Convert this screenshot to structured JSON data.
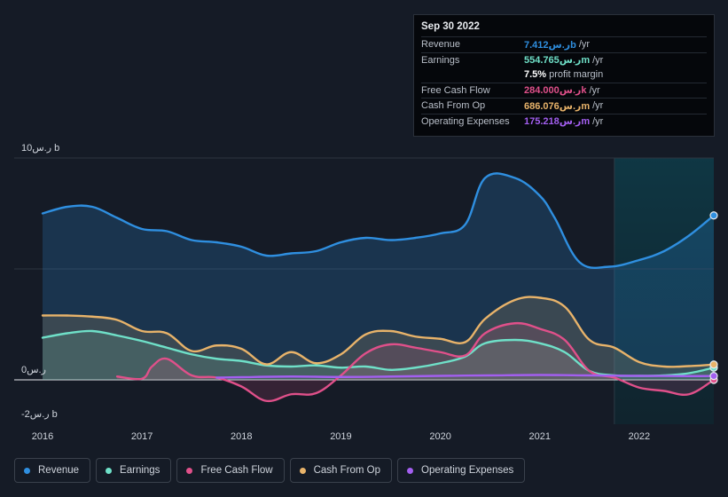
{
  "tooltip": {
    "date": "Sep 30 2022",
    "rows": [
      {
        "label": "Revenue",
        "value": "7.412ر.س",
        "value_suffix": "b",
        "unit": "/yr",
        "color": "#2f8fe0"
      },
      {
        "label": "Earnings",
        "value": "554.765ر.س",
        "value_suffix": "m",
        "unit": "/yr",
        "color": "#6fe0c8"
      },
      {
        "label": "",
        "value": "7.5%",
        "value_suffix": "",
        "unit": "profit margin",
        "color": "#ffffff"
      },
      {
        "label": "Free Cash Flow",
        "value": "284.000ر.س",
        "value_suffix": "k",
        "unit": "/yr",
        "color": "#e0508a"
      },
      {
        "label": "Cash From Op",
        "value": "686.076ر.س",
        "value_suffix": "m",
        "unit": "/yr",
        "color": "#e8b36a"
      },
      {
        "label": "Operating Expenses",
        "value": "175.218ر.س",
        "value_suffix": "m",
        "unit": "/yr",
        "color": "#a35ff0"
      }
    ]
  },
  "legend": [
    {
      "label": "Revenue",
      "color": "#2f8fe0"
    },
    {
      "label": "Earnings",
      "color": "#6fe0c8"
    },
    {
      "label": "Free Cash Flow",
      "color": "#e0508a"
    },
    {
      "label": "Cash From Op",
      "color": "#e8b36a"
    },
    {
      "label": "Operating Expenses",
      "color": "#a35ff0"
    }
  ],
  "chart_data": {
    "type": "area",
    "title": "",
    "unit": "ر.س",
    "y_tick_labels": [
      {
        "value": 10,
        "label": "10ر.س b"
      },
      {
        "value": 0,
        "label": "0ر.س"
      },
      {
        "value": -2,
        "label": "-2ر.س b"
      }
    ],
    "ylim": [
      -2,
      10
    ],
    "xlim": [
      2015.95,
      2022.75
    ],
    "x_ticks": [
      2016,
      2017,
      2018,
      2019,
      2020,
      2021,
      2022
    ],
    "forecast_start": 2021.75,
    "series": [
      {
        "name": "Revenue",
        "color": "#2f8fe0",
        "points": [
          [
            2016.0,
            7.5
          ],
          [
            2016.25,
            7.8
          ],
          [
            2016.5,
            7.8
          ],
          [
            2016.75,
            7.3
          ],
          [
            2017.0,
            6.8
          ],
          [
            2017.25,
            6.7
          ],
          [
            2017.5,
            6.3
          ],
          [
            2017.75,
            6.2
          ],
          [
            2018.0,
            6.0
          ],
          [
            2018.25,
            5.6
          ],
          [
            2018.5,
            5.7
          ],
          [
            2018.75,
            5.8
          ],
          [
            2019.0,
            6.2
          ],
          [
            2019.25,
            6.4
          ],
          [
            2019.5,
            6.3
          ],
          [
            2019.75,
            6.4
          ],
          [
            2020.0,
            6.6
          ],
          [
            2020.25,
            7.0
          ],
          [
            2020.45,
            9.1
          ],
          [
            2020.75,
            9.1
          ],
          [
            2021.0,
            8.3
          ],
          [
            2021.15,
            7.3
          ],
          [
            2021.4,
            5.3
          ],
          [
            2021.7,
            5.1
          ],
          [
            2022.0,
            5.4
          ],
          [
            2022.25,
            5.8
          ],
          [
            2022.5,
            6.5
          ],
          [
            2022.75,
            7.41
          ]
        ]
      },
      {
        "name": "Earnings",
        "color": "#6fe0c8",
        "points": [
          [
            2016.0,
            1.9
          ],
          [
            2016.25,
            2.1
          ],
          [
            2016.5,
            2.2
          ],
          [
            2016.75,
            2.0
          ],
          [
            2017.0,
            1.75
          ],
          [
            2017.25,
            1.45
          ],
          [
            2017.5,
            1.15
          ],
          [
            2017.75,
            0.95
          ],
          [
            2018.0,
            0.85
          ],
          [
            2018.25,
            0.65
          ],
          [
            2018.5,
            0.6
          ],
          [
            2018.75,
            0.65
          ],
          [
            2019.0,
            0.55
          ],
          [
            2019.25,
            0.6
          ],
          [
            2019.5,
            0.45
          ],
          [
            2019.75,
            0.55
          ],
          [
            2020.0,
            0.75
          ],
          [
            2020.25,
            1.05
          ],
          [
            2020.45,
            1.65
          ],
          [
            2020.75,
            1.8
          ],
          [
            2021.0,
            1.65
          ],
          [
            2021.25,
            1.25
          ],
          [
            2021.5,
            0.4
          ],
          [
            2021.75,
            0.2
          ],
          [
            2022.0,
            0.18
          ],
          [
            2022.25,
            0.2
          ],
          [
            2022.5,
            0.3
          ],
          [
            2022.75,
            0.55
          ]
        ]
      },
      {
        "name": "Free Cash Flow",
        "color": "#e0508a",
        "points": [
          [
            2016.75,
            0.15
          ],
          [
            2017.0,
            0.05
          ],
          [
            2017.1,
            0.6
          ],
          [
            2017.25,
            0.95
          ],
          [
            2017.5,
            0.2
          ],
          [
            2017.75,
            0.1
          ],
          [
            2018.0,
            -0.3
          ],
          [
            2018.25,
            -0.95
          ],
          [
            2018.5,
            -0.65
          ],
          [
            2018.75,
            -0.6
          ],
          [
            2019.0,
            0.2
          ],
          [
            2019.25,
            1.2
          ],
          [
            2019.5,
            1.6
          ],
          [
            2019.75,
            1.45
          ],
          [
            2020.0,
            1.25
          ],
          [
            2020.25,
            1.1
          ],
          [
            2020.45,
            2.1
          ],
          [
            2020.75,
            2.55
          ],
          [
            2021.0,
            2.3
          ],
          [
            2021.25,
            1.8
          ],
          [
            2021.5,
            0.4
          ],
          [
            2021.75,
            0.1
          ],
          [
            2022.0,
            -0.35
          ],
          [
            2022.25,
            -0.5
          ],
          [
            2022.5,
            -0.65
          ],
          [
            2022.75,
            0.0003
          ]
        ]
      },
      {
        "name": "Cash From Op",
        "color": "#e8b36a",
        "points": [
          [
            2016.0,
            2.9
          ],
          [
            2016.25,
            2.9
          ],
          [
            2016.5,
            2.85
          ],
          [
            2016.75,
            2.7
          ],
          [
            2017.0,
            2.2
          ],
          [
            2017.25,
            2.1
          ],
          [
            2017.5,
            1.3
          ],
          [
            2017.75,
            1.55
          ],
          [
            2018.0,
            1.4
          ],
          [
            2018.25,
            0.7
          ],
          [
            2018.5,
            1.25
          ],
          [
            2018.75,
            0.75
          ],
          [
            2019.0,
            1.15
          ],
          [
            2019.25,
            2.05
          ],
          [
            2019.5,
            2.2
          ],
          [
            2019.75,
            1.95
          ],
          [
            2020.0,
            1.85
          ],
          [
            2020.25,
            1.7
          ],
          [
            2020.45,
            2.75
          ],
          [
            2020.75,
            3.6
          ],
          [
            2021.0,
            3.7
          ],
          [
            2021.25,
            3.3
          ],
          [
            2021.5,
            1.8
          ],
          [
            2021.75,
            1.45
          ],
          [
            2022.0,
            0.8
          ],
          [
            2022.25,
            0.6
          ],
          [
            2022.5,
            0.62
          ],
          [
            2022.75,
            0.69
          ]
        ]
      },
      {
        "name": "Operating Expenses",
        "color": "#a35ff0",
        "points": [
          [
            2017.75,
            0.1
          ],
          [
            2018.0,
            0.12
          ],
          [
            2018.5,
            0.15
          ],
          [
            2019.0,
            0.13
          ],
          [
            2019.5,
            0.15
          ],
          [
            2020.0,
            0.18
          ],
          [
            2020.5,
            0.2
          ],
          [
            2021.0,
            0.22
          ],
          [
            2021.5,
            0.2
          ],
          [
            2022.0,
            0.18
          ],
          [
            2022.5,
            0.17
          ],
          [
            2022.75,
            0.175
          ]
        ]
      }
    ]
  }
}
